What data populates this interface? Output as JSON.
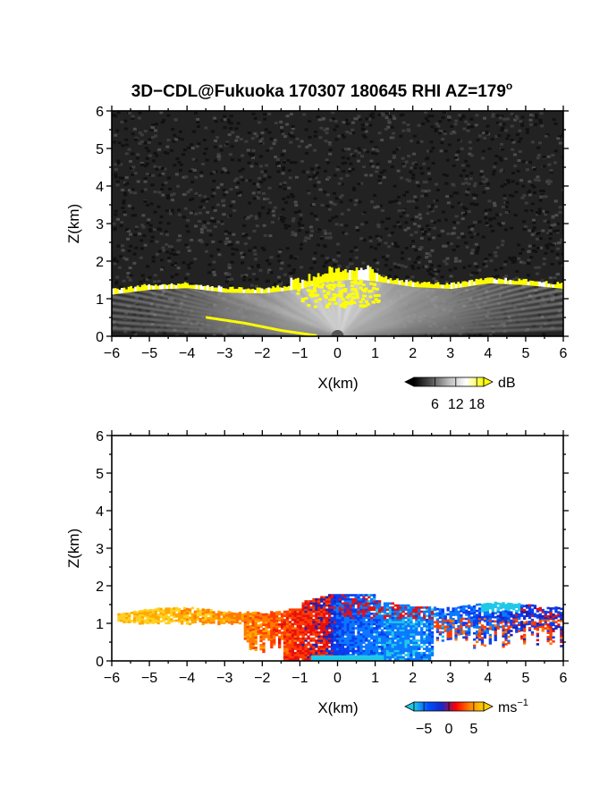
{
  "figure": {
    "title_main": "3D−CDL@Fukuoka 170307 180645 RHI AZ=179",
    "title_sup": "o"
  },
  "chart_data": [
    {
      "type": "heatmap",
      "variable": "intensity",
      "xlabel": "X(km)",
      "ylabel": "Z(km)",
      "xlim": [
        -6,
        6
      ],
      "ylim": [
        0,
        6
      ],
      "xticks": [
        "−6",
        "−5",
        "−4",
        "−3",
        "−2",
        "−1",
        "0",
        "1",
        "2",
        "3",
        "4",
        "5",
        "6"
      ],
      "yticks": [
        "0",
        "1",
        "2",
        "3",
        "4",
        "5",
        "6"
      ],
      "background": "noise",
      "colorbar": {
        "unit": "dB",
        "tick_values": [
          6,
          12,
          18
        ],
        "tick_labels": [
          "6",
          "12",
          "18"
        ],
        "range": [
          0,
          20
        ],
        "colors": [
          "#000000",
          "#ffffff",
          "#ffff00"
        ]
      },
      "cloud_base_km": [
        [
          -6.0,
          1.15
        ],
        [
          -5.0,
          1.28
        ],
        [
          -4.0,
          1.32
        ],
        [
          -3.0,
          1.2
        ],
        [
          -2.0,
          1.18
        ],
        [
          -1.0,
          1.3
        ],
        [
          -0.3,
          1.5
        ],
        [
          0.5,
          1.55
        ],
        [
          1.0,
          1.5
        ],
        [
          2.0,
          1.35
        ],
        [
          3.0,
          1.3
        ],
        [
          4.0,
          1.45
        ],
        [
          5.0,
          1.4
        ],
        [
          6.0,
          1.3
        ]
      ],
      "lower_layer_km": [
        [
          -3.5,
          0.5
        ],
        [
          -2.5,
          0.35
        ],
        [
          -1.5,
          0.15
        ],
        [
          -0.6,
          0.02
        ]
      ]
    },
    {
      "type": "heatmap",
      "variable": "radial_velocity",
      "xlabel": "X(km)",
      "ylabel": "Z(km)",
      "xlim": [
        -6,
        6
      ],
      "ylim": [
        0,
        6
      ],
      "xticks": [
        "−6",
        "−5",
        "−4",
        "−3",
        "−2",
        "−1",
        "0",
        "1",
        "2",
        "3",
        "4",
        "5",
        "6"
      ],
      "yticks": [
        "0",
        "1",
        "2",
        "3",
        "4",
        "5",
        "6"
      ],
      "background": "white",
      "colorbar": {
        "unit": "ms",
        "unit_sup": "−1",
        "tick_values": [
          -5,
          0,
          5
        ],
        "tick_labels": [
          "−5",
          "0",
          "5"
        ],
        "range": [
          -7,
          7
        ],
        "colors": [
          "#20c8e8",
          "#0050ff",
          "#1428c8",
          "#ff0000",
          "#ff8000",
          "#ffd000"
        ]
      },
      "velocity_by_x_ms": [
        [
          -6.0,
          6.5
        ],
        [
          -5.0,
          6.0
        ],
        [
          -4.0,
          5.5
        ],
        [
          -3.0,
          4.5
        ],
        [
          -2.0,
          3.5
        ],
        [
          -1.0,
          1.5
        ],
        [
          -0.3,
          0.5
        ],
        [
          0.0,
          -2.0
        ],
        [
          1.0,
          -3.5
        ],
        [
          2.0,
          -4.0
        ],
        [
          3.0,
          -3.0
        ],
        [
          4.0,
          -2.0
        ],
        [
          5.0,
          -1.0
        ],
        [
          6.0,
          -0.5
        ]
      ]
    }
  ]
}
